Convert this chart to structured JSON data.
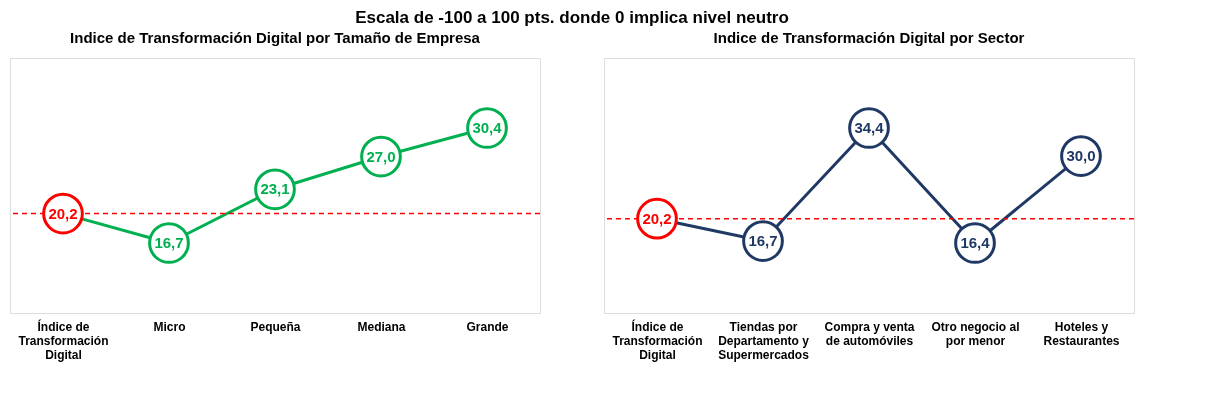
{
  "chart_data": [
    {
      "type": "line",
      "title": "Indice de Transformación Digital por Tamaño de Empresa",
      "annotations": [
        "Escala de -100 a 100 pts. donde 0 implica nivel neutro"
      ],
      "categories": [
        "Índice de Transformación Digital",
        "Micro",
        "Pequeña",
        "Mediana",
        "Grande"
      ],
      "series": [
        {
          "color": "#00b050",
          "colors": [
            "#ff0000",
            "#00b050",
            "#00b050",
            "#00b050",
            "#00b050"
          ],
          "values": [
            20.2,
            16.7,
            23.1,
            27.0,
            30.4
          ],
          "value_labels": [
            "20,2",
            "16,7",
            "23,1",
            "27,0",
            "30,4"
          ]
        }
      ],
      "ref_lines": [
        {
          "axis": "y",
          "value": 20.2,
          "color": "#ff0000",
          "line_style": "dashed"
        }
      ],
      "marker": "circle",
      "tick_labels": "x"
    },
    {
      "type": "line",
      "title": "Indice de Transformación Digital por Sector",
      "categories": [
        "Índice de Transformación Digital",
        "Tiendas por Departamento y Supermercados",
        "Compra y venta de automóviles",
        "Otro negocio al por menor",
        "Hoteles y Restaurantes"
      ],
      "series": [
        {
          "color": "#1f3864",
          "colors": [
            "#ff0000",
            "#1f3864",
            "#1f3864",
            "#1f3864",
            "#1f3864"
          ],
          "values": [
            20.2,
            16.7,
            34.4,
            16.4,
            30.0
          ],
          "value_labels": [
            "20,2",
            "16,7",
            "34,4",
            "16,4",
            "30,0"
          ]
        }
      ],
      "ref_lines": [
        {
          "axis": "y",
          "value": 20.2,
          "color": "#ff0000",
          "line_style": "dashed"
        }
      ],
      "marker": "circle",
      "tick_labels": "x"
    }
  ]
}
